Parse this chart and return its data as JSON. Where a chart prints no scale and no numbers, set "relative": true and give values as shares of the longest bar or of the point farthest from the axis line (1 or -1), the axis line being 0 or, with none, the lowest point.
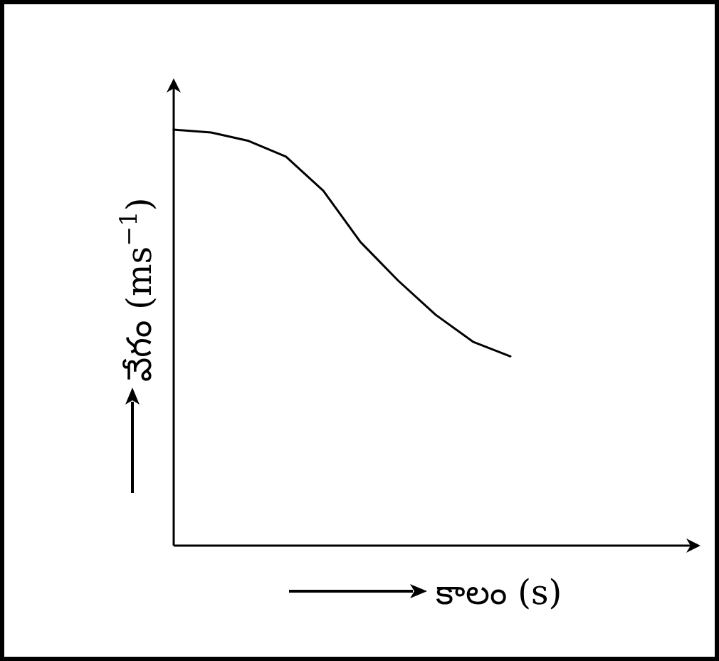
{
  "chart_data": {
    "type": "line",
    "relative": true,
    "xlabel": "కాలం (s)",
    "ylabel": "వేగం (ms$^{−1}$)",
    "categories": [
      null,
      null,
      null,
      null,
      null,
      null,
      null,
      null,
      null,
      null
    ],
    "series": [
      {
        "color": "#000000",
        "values": [
          1,
          0.993,
          0.973,
          0.935,
          0.853,
          0.729,
          0.637,
          0.555,
          0.49,
          0.455
        ]
      }
    ],
    "marker": "none",
    "line_style": "solid"
  }
}
